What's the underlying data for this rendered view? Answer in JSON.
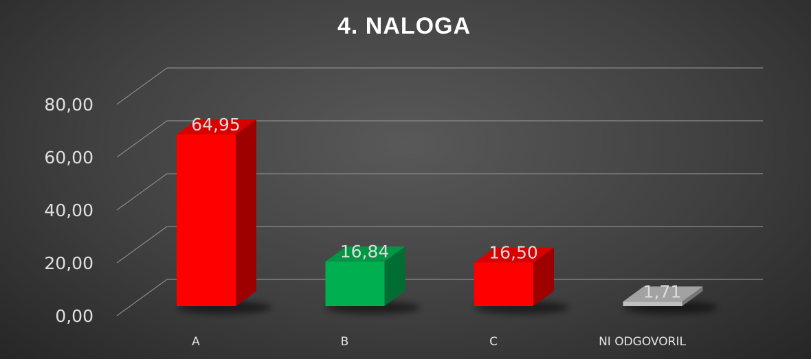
{
  "chart_data": {
    "type": "bar",
    "title": "4. NALOGA",
    "categories": [
      "A",
      "B",
      "C",
      "NI ODGOVORIL"
    ],
    "values": [
      64.95,
      16.84,
      16.5,
      1.71
    ],
    "value_labels": [
      "64,95",
      "16,84",
      "16,50",
      "1,71"
    ],
    "colors": [
      "#ff0000",
      "#00b050",
      "#ff0000",
      "#bfbfbf"
    ],
    "ylim": [
      0,
      80
    ],
    "y_ticks": [
      "0,00",
      "20,00",
      "40,00",
      "60,00",
      "80,00"
    ],
    "xlabel": "",
    "ylabel": "",
    "grid": true,
    "legend": "none",
    "style": "3d"
  }
}
